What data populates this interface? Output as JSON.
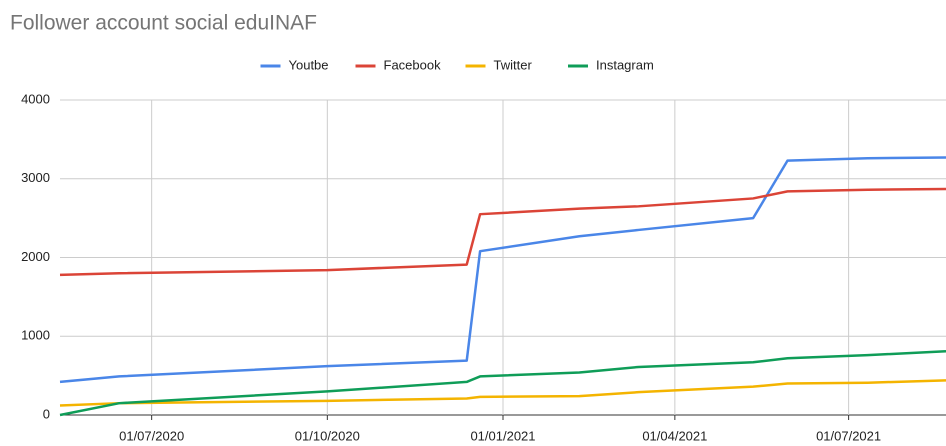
{
  "chart_data": {
    "type": "line",
    "title": "Follower account social eduINAF",
    "x": [
      "2020-05-14",
      "2020-06-14",
      "2020-10-01",
      "2020-12-13",
      "2020-12-20",
      "2021-02-10",
      "2021-03-13",
      "2021-05-12",
      "2021-05-30",
      "2021-07-11",
      "2021-08-21"
    ],
    "series": [
      {
        "name": "Youtbe",
        "color": "#4a86e8",
        "values": [
          420,
          490,
          620,
          690,
          2080,
          2270,
          2350,
          2500,
          3230,
          3260,
          3270
        ]
      },
      {
        "name": "Facebook",
        "color": "#db4437",
        "values": [
          1780,
          1800,
          1840,
          1910,
          2550,
          2620,
          2650,
          2750,
          2840,
          2860,
          2870
        ]
      },
      {
        "name": "Twitter",
        "color": "#f4b400",
        "values": [
          120,
          150,
          180,
          210,
          230,
          240,
          290,
          360,
          400,
          410,
          440
        ]
      },
      {
        "name": "Instagram",
        "color": "#0f9d58",
        "values": [
          0,
          150,
          300,
          420,
          490,
          540,
          610,
          670,
          720,
          760,
          810
        ]
      }
    ],
    "xlim": [
      "2020-05-14",
      "2021-08-21"
    ],
    "xticks": [
      {
        "value": "2020-07-01",
        "label": "01/07/2020"
      },
      {
        "value": "2020-10-01",
        "label": "01/10/2020"
      },
      {
        "value": "2021-01-01",
        "label": "01/01/2021"
      },
      {
        "value": "2021-04-01",
        "label": "01/04/2021"
      },
      {
        "value": "2021-07-01",
        "label": "01/07/2021"
      }
    ],
    "ylim": [
      0,
      4000
    ],
    "yticks": [
      0,
      1000,
      2000,
      3000,
      4000
    ],
    "grid": true,
    "legend": "top"
  }
}
